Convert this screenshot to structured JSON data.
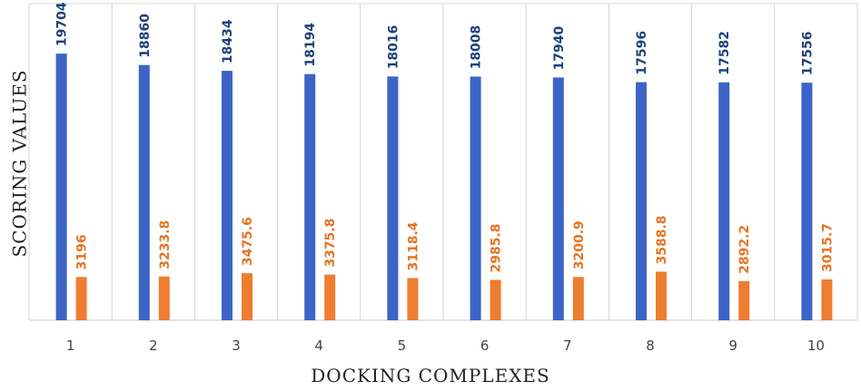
{
  "chart_data": {
    "type": "bar",
    "categories": [
      "1",
      "2",
      "3",
      "4",
      "5",
      "6",
      "7",
      "8",
      "9",
      "10"
    ],
    "series": [
      {
        "values": [
          19704,
          18860,
          18434,
          18194,
          18016,
          18008,
          17940,
          17596,
          17582,
          17556
        ],
        "color": "#3b64c6"
      },
      {
        "values": [
          3196,
          3233.8,
          3475.6,
          3375.8,
          3118.4,
          2985.8,
          3200.9,
          3588.8,
          2892.2,
          3015.7
        ],
        "color": "#ee7d31"
      }
    ],
    "data_labels": [
      [
        "19704",
        "18860",
        "18434",
        "18194",
        "18016",
        "18008",
        "17940",
        "17596",
        "17582",
        "17556"
      ],
      [
        "3196",
        "3233.8",
        "3475.6",
        "3375.8",
        "3118.4",
        "2985.8",
        "3200.9",
        "3588.8",
        "2892.2",
        "3015.7"
      ]
    ],
    "xlabel": "DOCKING COMPLEXES",
    "ylabel": "SCORING VALUES",
    "ylim": [
      0,
      23400
    ],
    "grid": "vertical separators",
    "legend": "none"
  }
}
